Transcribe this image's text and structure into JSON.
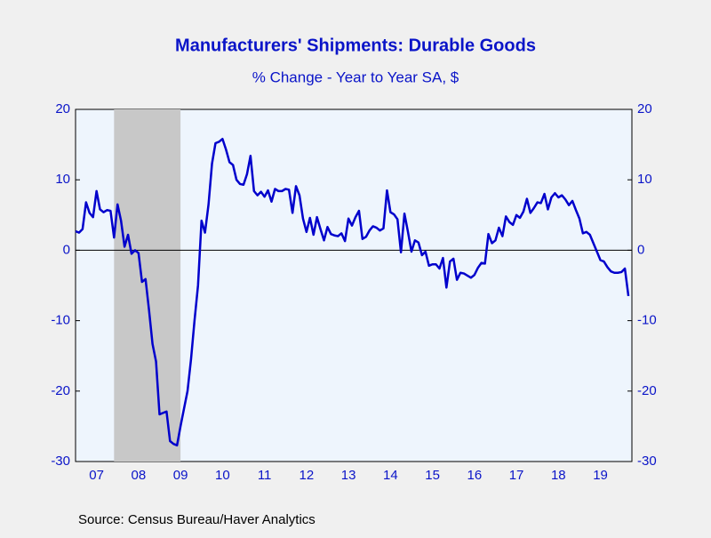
{
  "chart_data": {
    "type": "line",
    "title": "Manufacturers' Shipments: Durable Goods",
    "subtitle": "% Change - Year to Year    SA, $",
    "source": "Source:  Census Bureau/Haver Analytics",
    "x": [
      2007,
      2007.083,
      2007.167,
      2007.25,
      2007.333,
      2007.417,
      2007.5,
      2007.583,
      2007.667,
      2007.75,
      2007.833,
      2007.917,
      2008,
      2008.083,
      2008.167,
      2008.25,
      2008.333,
      2008.417,
      2008.5,
      2008.583,
      2008.667,
      2008.75,
      2008.833,
      2008.917,
      2009,
      2009.083,
      2009.167,
      2009.25,
      2009.333,
      2009.417,
      2009.5,
      2009.583,
      2009.667,
      2009.75,
      2009.833,
      2009.917,
      2010,
      2010.083,
      2010.167,
      2010.25,
      2010.333,
      2010.417,
      2010.5,
      2010.583,
      2010.667,
      2010.75,
      2010.833,
      2010.917,
      2011,
      2011.083,
      2011.167,
      2011.25,
      2011.333,
      2011.417,
      2011.5,
      2011.583,
      2011.667,
      2011.75,
      2011.833,
      2011.917,
      2012,
      2012.083,
      2012.167,
      2012.25,
      2012.333,
      2012.417,
      2012.5,
      2012.583,
      2012.667,
      2012.75,
      2012.833,
      2012.917,
      2013,
      2013.083,
      2013.167,
      2013.25,
      2013.333,
      2013.417,
      2013.5,
      2013.583,
      2013.667,
      2013.75,
      2013.833,
      2013.917,
      2014,
      2014.083,
      2014.167,
      2014.25,
      2014.333,
      2014.417,
      2014.5,
      2014.583,
      2014.667,
      2014.75,
      2014.833,
      2014.917,
      2015,
      2015.083,
      2015.167,
      2015.25,
      2015.333,
      2015.417,
      2015.5,
      2015.583,
      2015.667,
      2015.75,
      2015.833,
      2015.917,
      2016,
      2016.083,
      2016.167,
      2016.25,
      2016.333,
      2016.417,
      2016.5,
      2016.583,
      2016.667,
      2016.75,
      2016.833,
      2016.917,
      2017,
      2017.083,
      2017.167,
      2017.25,
      2017.333,
      2017.417,
      2017.5,
      2017.583,
      2017.667,
      2017.75,
      2017.833,
      2017.917,
      2018,
      2018.083,
      2018.167,
      2018.25,
      2018.333,
      2018.417,
      2018.5,
      2018.583,
      2018.667,
      2018.75,
      2018.833,
      2018.917,
      2019,
      2019.083,
      2019.167,
      2019.25,
      2019.333,
      2019.417,
      2019.5,
      2019.583,
      2019.667,
      2019.75,
      2019.833,
      2019.917,
      2020,
      2020.083,
      2020.167
    ],
    "series": [
      {
        "color": "#0000cc",
        "values": [
          2.7,
          2.5,
          3.0,
          6.8,
          5.3,
          4.7,
          8.4,
          5.8,
          5.4,
          5.7,
          5.6,
          1.8,
          6.5,
          4.2,
          0.5,
          2.2,
          -0.5,
          0.0,
          -0.4,
          -4.5,
          -4.1,
          -8.5,
          -13.3,
          -15.8,
          -23.3,
          -23.1,
          -22.9,
          -27.1,
          -27.5,
          -27.7,
          -25.0,
          -22.5,
          -20.0,
          -15.5,
          -10.0,
          -5.0,
          4.2,
          2.5,
          6.5,
          12.3,
          15.2,
          15.4,
          15.8,
          14.3,
          12.5,
          12.1,
          10.0,
          9.4,
          9.3,
          10.8,
          13.4,
          8.4,
          7.8,
          8.3,
          7.6,
          8.5,
          6.9,
          8.7,
          8.4,
          8.4,
          8.7,
          8.6,
          5.3,
          9.1,
          7.8,
          4.5,
          2.6,
          4.6,
          2.2,
          4.7,
          3.0,
          1.4,
          3.3,
          2.3,
          2.1,
          2.0,
          2.4,
          1.3,
          4.5,
          3.5,
          4.7,
          5.6,
          1.6,
          1.9,
          2.8,
          3.4,
          3.2,
          2.8,
          3.1,
          8.5,
          5.4,
          5.1,
          4.4,
          -0.3,
          5.2,
          2.6,
          -0.2,
          1.4,
          1.1,
          -0.7,
          -0.2,
          -2.2,
          -2.0,
          -2.0,
          -2.6,
          -1.1,
          -5.3,
          -1.6,
          -1.2,
          -4.2,
          -3.2,
          -3.3,
          -3.6,
          -3.9,
          -3.5,
          -2.5,
          -1.8,
          -1.9,
          2.3,
          1.0,
          1.4,
          3.2,
          2.0,
          4.8,
          4.0,
          3.6,
          5.0,
          4.6,
          5.5,
          7.3,
          5.3,
          6.0,
          6.8,
          6.7,
          8.0,
          5.8,
          7.5,
          8.1,
          7.5,
          7.8,
          7.2,
          6.4,
          7.0,
          5.7,
          4.5,
          2.4,
          2.6,
          2.2,
          1.0,
          -0.2,
          -1.4,
          -1.6,
          -2.4,
          -3.0,
          -3.2,
          -3.2,
          -3.1,
          -2.6,
          -6.5
        ]
      }
    ],
    "xlim": [
      2007,
      2020.25
    ],
    "xticks": [
      {
        "value": 2007.5,
        "label": "07"
      },
      {
        "value": 2008.5,
        "label": "08"
      },
      {
        "value": 2009.5,
        "label": "09"
      },
      {
        "value": 2010.5,
        "label": "10"
      },
      {
        "value": 2011.5,
        "label": "11"
      },
      {
        "value": 2012.5,
        "label": "12"
      },
      {
        "value": 2013.5,
        "label": "13"
      },
      {
        "value": 2014.5,
        "label": "14"
      },
      {
        "value": 2015.5,
        "label": "15"
      },
      {
        "value": 2016.5,
        "label": "16"
      },
      {
        "value": 2017.5,
        "label": "17"
      },
      {
        "value": 2018.5,
        "label": "18"
      },
      {
        "value": 2019.5,
        "label": "19"
      }
    ],
    "ylim": [
      -30,
      20
    ],
    "yticks": [
      -30,
      -20,
      -10,
      0,
      10,
      20
    ],
    "y2lim": [
      -30,
      20
    ],
    "y2ticks": [
      -30,
      -20,
      -10,
      0,
      10,
      20
    ],
    "recession": [
      2007.917,
      2009.5
    ],
    "zero_line": 0
  }
}
